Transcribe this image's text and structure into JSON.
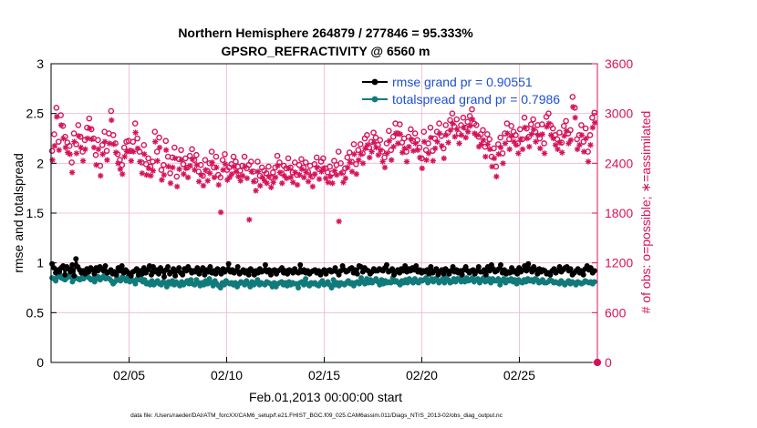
{
  "chart_data": {
    "type": "line",
    "title": [
      "Northern Hemisphere 264879 / 277846 = 95.333%",
      "GPSRO_REFRACTIVITY @ 6560 m"
    ],
    "xlabel": "Feb.01,2013 00:00:00 start",
    "ylabel_left": "rmse and totalspread",
    "ylabel_right": "# of obs: o=possible; ∗=assimilated",
    "xlim": [
      1,
      29
    ],
    "ylim_left": [
      0,
      3
    ],
    "ylim_right": [
      0,
      3600
    ],
    "x_ticks": [
      {
        "x": 5,
        "label": "02/05"
      },
      {
        "x": 10,
        "label": "02/10"
      },
      {
        "x": 15,
        "label": "02/15"
      },
      {
        "x": 20,
        "label": "02/20"
      },
      {
        "x": 25,
        "label": "02/25"
      }
    ],
    "y_ticks_left": [
      "0",
      "0.5",
      "1",
      "1.5",
      "2",
      "2.5",
      "3"
    ],
    "y_ticks_right": [
      "0",
      "600",
      "1200",
      "1800",
      "2400",
      "3000",
      "3600"
    ],
    "grid": true,
    "legend_position": "top-right",
    "colors": {
      "rmse": "#000000",
      "spread": "#117a7a",
      "obs": "#d4145a",
      "legend_text": "#1f4fd0"
    },
    "series": [
      {
        "name": "rmse grand pr = 0.90551",
        "axis": "left",
        "marker": "filled-circle",
        "values": [
          0.99,
          0.95,
          0.9,
          0.93,
          0.91,
          0.95,
          0.97,
          0.88,
          0.96,
          0.94,
          0.91,
          0.98,
          0.87,
          1.04,
          0.96,
          0.93,
          0.9,
          0.92,
          0.89,
          0.94,
          0.91,
          0.95,
          0.93,
          0.89,
          0.95,
          0.92,
          0.96,
          0.94,
          0.92,
          0.97,
          0.9,
          0.91,
          0.93,
          0.89,
          0.91,
          0.88,
          0.95,
          0.92,
          0.97,
          0.9,
          0.93,
          0.91,
          0.89,
          0.87,
          0.91,
          0.92,
          0.94,
          0.88,
          0.92,
          0.89,
          0.95,
          0.9,
          0.93,
          0.97,
          0.88,
          0.96,
          0.91,
          0.93,
          0.89,
          0.95,
          0.92,
          0.86,
          0.93,
          0.96,
          0.89,
          0.91,
          0.94,
          0.87,
          0.92,
          0.95,
          0.9,
          0.88,
          0.94,
          0.92,
          0.96,
          0.93,
          0.9,
          0.92,
          0.91,
          0.95,
          0.89,
          0.92,
          0.95,
          0.88,
          0.93,
          0.91,
          0.96,
          0.9,
          0.92,
          0.89,
          0.94,
          0.92,
          0.89,
          0.94,
          0.91,
          0.93,
          0.99,
          0.91,
          0.93,
          0.9,
          0.92,
          0.96,
          0.89,
          0.91,
          0.93,
          0.9,
          0.92,
          0.88,
          0.94,
          0.92,
          0.88,
          0.92,
          0.9,
          0.94,
          0.91,
          0.92,
          0.98,
          0.91,
          0.93,
          0.88,
          0.92,
          0.93,
          0.89,
          0.92,
          0.93,
          0.95,
          0.9,
          0.92,
          0.89,
          0.93,
          0.92,
          0.9,
          0.94,
          0.91,
          0.9,
          0.98,
          0.91,
          0.93,
          0.9,
          0.92,
          0.89,
          0.91,
          0.92,
          0.93,
          0.9,
          0.92,
          0.88,
          0.91,
          0.93,
          0.89,
          0.92,
          0.93,
          0.91,
          0.92,
          0.95,
          0.91,
          0.88,
          0.92,
          0.97,
          0.93,
          0.91,
          0.92,
          0.94,
          0.95,
          0.9,
          0.93,
          0.89,
          0.97,
          0.96,
          0.91,
          0.95,
          0.93,
          0.92,
          0.89,
          0.91,
          0.94,
          0.92,
          0.92,
          0.94,
          0.93,
          0.92,
          0.95,
          0.98,
          0.91,
          0.92,
          0.94,
          0.88,
          0.91,
          0.93,
          0.9,
          0.94,
          0.92,
          0.97,
          0.91,
          0.94,
          0.92,
          0.95,
          0.93,
          0.97,
          0.91,
          0.93,
          0.9,
          0.92,
          0.91,
          0.93,
          0.89,
          0.96,
          0.9,
          0.92,
          0.94,
          0.88,
          0.91,
          0.93,
          0.89,
          0.94,
          0.92,
          0.89,
          0.92,
          0.96,
          0.91,
          0.93,
          0.9,
          0.92,
          0.88,
          0.93,
          0.96,
          0.92,
          0.9,
          0.92,
          0.93,
          0.89,
          0.92,
          0.96,
          0.91,
          0.91,
          0.93,
          0.88,
          0.96,
          0.92,
          0.98,
          0.94,
          0.91,
          0.92,
          0.94,
          0.98,
          0.9,
          0.93,
          0.89,
          0.91,
          0.9,
          0.95,
          0.91,
          0.92,
          0.89,
          0.95,
          0.91,
          0.93,
          0.97,
          0.92,
          0.99,
          0.94,
          0.91,
          0.96,
          0.93,
          0.89,
          0.94,
          0.91,
          0.93,
          0.92,
          0.89,
          0.9,
          0.88,
          0.92,
          0.94,
          0.9,
          0.92,
          0.96,
          0.91,
          0.93,
          0.95,
          0.96,
          0.92,
          0.94,
          0.88,
          0.9,
          0.92,
          0.94,
          0.9,
          0.92,
          0.88,
          0.94,
          0.97,
          0.93,
          0.95,
          0.9,
          0.92
        ]
      },
      {
        "name": "totalspread grand pr = 0.7986",
        "axis": "left",
        "marker": "filled-circle",
        "values": [
          0.85,
          0.84,
          0.82,
          0.86,
          0.88,
          0.85,
          0.84,
          0.83,
          0.85,
          0.87,
          0.86,
          0.81,
          0.84,
          0.85,
          0.84,
          0.83,
          0.85,
          0.84,
          0.86,
          0.87,
          0.85,
          0.83,
          0.84,
          0.81,
          0.84,
          0.86,
          0.83,
          0.85,
          0.87,
          0.84,
          0.85,
          0.84,
          0.82,
          0.79,
          0.81,
          0.85,
          0.83,
          0.82,
          0.86,
          0.84,
          0.82,
          0.86,
          0.81,
          0.83,
          0.82,
          0.79,
          0.84,
          0.83,
          0.85,
          0.81,
          0.83,
          0.79,
          0.8,
          0.78,
          0.82,
          0.78,
          0.8,
          0.82,
          0.79,
          0.78,
          0.81,
          0.8,
          0.76,
          0.81,
          0.79,
          0.82,
          0.78,
          0.81,
          0.79,
          0.77,
          0.81,
          0.78,
          0.8,
          0.82,
          0.79,
          0.83,
          0.79,
          0.78,
          0.83,
          0.8,
          0.77,
          0.8,
          0.78,
          0.82,
          0.79,
          0.84,
          0.8,
          0.77,
          0.82,
          0.79,
          0.77,
          0.75,
          0.8,
          0.78,
          0.82,
          0.8,
          0.79,
          0.8,
          0.78,
          0.8,
          0.76,
          0.79,
          0.81,
          0.8,
          0.78,
          0.82,
          0.79,
          0.76,
          0.81,
          0.78,
          0.8,
          0.83,
          0.78,
          0.8,
          0.79,
          0.78,
          0.81,
          0.8,
          0.79,
          0.76,
          0.8,
          0.76,
          0.79,
          0.8,
          0.81,
          0.78,
          0.8,
          0.77,
          0.81,
          0.78,
          0.8,
          0.79,
          0.79,
          0.75,
          0.8,
          0.81,
          0.78,
          0.84,
          0.79,
          0.77,
          0.8,
          0.79,
          0.8,
          0.78,
          0.77,
          0.8,
          0.82,
          0.78,
          0.79,
          0.81,
          0.78,
          0.75,
          0.83,
          0.78,
          0.8,
          0.77,
          0.8,
          0.79,
          0.78,
          0.8,
          0.82,
          0.79,
          0.8,
          0.77,
          0.8,
          0.81,
          0.79,
          0.85,
          0.81,
          0.79,
          0.84,
          0.8,
          0.83,
          0.8,
          0.82,
          0.84,
          0.81,
          0.78,
          0.83,
          0.79,
          0.82,
          0.8,
          0.81,
          0.8,
          0.85,
          0.81,
          0.82,
          0.8,
          0.78,
          0.82,
          0.8,
          0.83,
          0.8,
          0.84,
          0.82,
          0.8,
          0.84,
          0.81,
          0.8,
          0.83,
          0.82,
          0.83,
          0.85,
          0.8,
          0.82,
          0.84,
          0.81,
          0.84,
          0.83,
          0.8,
          0.82,
          0.84,
          0.8,
          0.85,
          0.83,
          0.8,
          0.81,
          0.84,
          0.81,
          0.84,
          0.84,
          0.81,
          0.83,
          0.81,
          0.85,
          0.82,
          0.83,
          0.85,
          0.81,
          0.83,
          0.84,
          0.8,
          0.83,
          0.85,
          0.81,
          0.82,
          0.84,
          0.8,
          0.84,
          0.82,
          0.82,
          0.84,
          0.78,
          0.82,
          0.84,
          0.8,
          0.83,
          0.82,
          0.84,
          0.81,
          0.83,
          0.79,
          0.83,
          0.81,
          0.8,
          0.83,
          0.81,
          0.84,
          0.82,
          0.83,
          0.81,
          0.84,
          0.83,
          0.8,
          0.81,
          0.83,
          0.8,
          0.8,
          0.81,
          0.83,
          0.82,
          0.8,
          0.81,
          0.8,
          0.79,
          0.82,
          0.8,
          0.78,
          0.8,
          0.82,
          0.79,
          0.81,
          0.8,
          0.78,
          0.81,
          0.8,
          0.79,
          0.8,
          0.82,
          0.81,
          0.8,
          0.81,
          0.79,
          0.81
        ]
      },
      {
        "name": "possible",
        "axis": "right",
        "marker": "open-circle",
        "values": [
          2550,
          2750,
          3070,
          2660,
          2980,
          2850,
          2720,
          2650,
          2610,
          2410,
          2760,
          2630,
          2860,
          2720,
          2540,
          2680,
          2830,
          2940,
          2810,
          2700,
          2500,
          2680,
          2370,
          2620,
          2780,
          2550,
          2760,
          3030,
          2740,
          2640,
          2510,
          2440,
          2380,
          2590,
          2660,
          2670,
          2550,
          2660,
          2880,
          2700,
          2540,
          2410,
          2620,
          2390,
          2460,
          2360,
          2420,
          2780,
          2540,
          2710,
          2320,
          2380,
          2670,
          2480,
          2280,
          2470,
          2590,
          2240,
          2450,
          2560,
          2390,
          2460,
          2350,
          2490,
          2570,
          2440,
          2500,
          2300,
          2380,
          2250,
          2440,
          2310,
          2400,
          2540,
          2350,
          2480,
          2260,
          2230,
          2440,
          2510,
          2320,
          2350,
          2390,
          2480,
          2420,
          2360,
          2310,
          2370,
          2480,
          2340,
          2380,
          2420,
          2300,
          2190,
          2420,
          2250,
          2350,
          2310,
          2280,
          2360,
          2230,
          2290,
          2350,
          2490,
          2410,
          2280,
          2370,
          2340,
          2460,
          2350,
          2290,
          2410,
          2260,
          2380,
          2450,
          2350,
          2410,
          2300,
          2370,
          2240,
          2390,
          2470,
          2330,
          2420,
          2460,
          2340,
          2290,
          2360,
          2280,
          2430,
          2380,
          2540,
          2400,
          2290,
          2340,
          2470,
          2530,
          2420,
          2630,
          2390,
          2560,
          2630,
          2520,
          2700,
          2740,
          2590,
          2660,
          2770,
          2710,
          2620,
          2680,
          2540,
          2470,
          2640,
          2790,
          2560,
          2720,
          2880,
          2760,
          2870,
          2650,
          2700,
          2540,
          2720,
          2810,
          2670,
          2760,
          2680,
          2590,
          2460,
          2780,
          2560,
          2640,
          2830,
          2550,
          2700,
          2780,
          2880,
          2730,
          2580,
          2860,
          2770,
          2920,
          3000,
          2840,
          2930,
          2760,
          2860,
          2950,
          2830,
          2900,
          2970,
          3050,
          2880,
          2860,
          2720,
          2750,
          2800,
          2600,
          2750,
          2690,
          2480,
          2580,
          2360,
          2630,
          2710,
          2520,
          2760,
          2880,
          2690,
          2850,
          2780,
          2740,
          2640,
          2810,
          2690,
          2950,
          2820,
          2720,
          2870,
          2930,
          2780,
          2860,
          2700,
          2870,
          2640,
          2960,
          3000,
          2860,
          2820,
          2740,
          2690,
          2770,
          2650,
          2850,
          2910,
          2760,
          2800,
          3200,
          3070,
          2690,
          2740,
          2860,
          2660,
          2820,
          2540,
          2740,
          2950,
          3010
        ]
      },
      {
        "name": "assimilated",
        "axis": "right",
        "marker": "asterisk",
        "values": [
          2440,
          2610,
          2960,
          2560,
          2860,
          2700,
          2590,
          2530,
          2510,
          2290,
          2660,
          2520,
          2730,
          2590,
          2430,
          2570,
          2700,
          2820,
          2690,
          2590,
          2380,
          2570,
          2250,
          2510,
          2660,
          2440,
          2640,
          2920,
          2630,
          2530,
          2400,
          2330,
          2270,
          2480,
          2540,
          2550,
          2430,
          2540,
          2770,
          2580,
          2420,
          2280,
          2510,
          2260,
          2340,
          2250,
          2310,
          2660,
          2430,
          2590,
          2200,
          2260,
          2560,
          2360,
          2160,
          2350,
          2460,
          2120,
          2330,
          2440,
          2270,
          2340,
          2230,
          2370,
          2450,
          2320,
          2380,
          2180,
          2260,
          2130,
          2320,
          2190,
          2280,
          2410,
          2230,
          2350,
          2140,
          1810,
          2320,
          2390,
          2200,
          2230,
          2270,
          2360,
          2300,
          2240,
          2190,
          2250,
          2360,
          2220,
          1720,
          2300,
          2180,
          2070,
          2300,
          2130,
          2230,
          2190,
          2160,
          2240,
          2110,
          2170,
          2230,
          2370,
          2290,
          2160,
          2250,
          2220,
          2340,
          2230,
          2170,
          2290,
          2140,
          2260,
          2330,
          2230,
          2290,
          2180,
          2250,
          2120,
          2270,
          2350,
          2210,
          2300,
          2340,
          2220,
          2170,
          2240,
          2160,
          2310,
          2260,
          1700,
          2280,
          2170,
          2220,
          2350,
          2410,
          2300,
          2510,
          2270,
          2440,
          2510,
          2400,
          2580,
          2620,
          2470,
          2540,
          2650,
          2590,
          2500,
          2560,
          2420,
          2350,
          2520,
          2670,
          2440,
          2600,
          2760,
          2640,
          2750,
          2530,
          2580,
          2420,
          2600,
          2690,
          2550,
          2640,
          2560,
          2470,
          2340,
          2660,
          2440,
          2520,
          2710,
          2430,
          2580,
          2660,
          2760,
          2610,
          2460,
          2740,
          2650,
          2800,
          2880,
          2720,
          2810,
          2640,
          2740,
          2830,
          2710,
          2780,
          2850,
          2930,
          2760,
          2740,
          2600,
          2630,
          2680,
          2480,
          2630,
          2570,
          2360,
          2460,
          2240,
          2510,
          2590,
          2400,
          2640,
          2760,
          2570,
          2730,
          2660,
          2620,
          2520,
          2690,
          2570,
          2830,
          2700,
          2600,
          2750,
          2810,
          2660,
          2740,
          2580,
          2750,
          2520,
          2840,
          2880,
          2740,
          2700,
          2620,
          2570,
          2650,
          2530,
          2730,
          2790,
          2640,
          2680,
          3080,
          2950,
          2570,
          2620,
          2740,
          2540,
          2700,
          2420,
          2620,
          2830,
          2890
        ]
      }
    ],
    "footnote": "data file: /Users/raeder/DAI/ATM_forcXX/CAM6_setup/f.e21.FHIST_BGC.f09_025.CAM6assim.011/Diags_NTrS_2013-02/obs_diag_output.nc"
  }
}
